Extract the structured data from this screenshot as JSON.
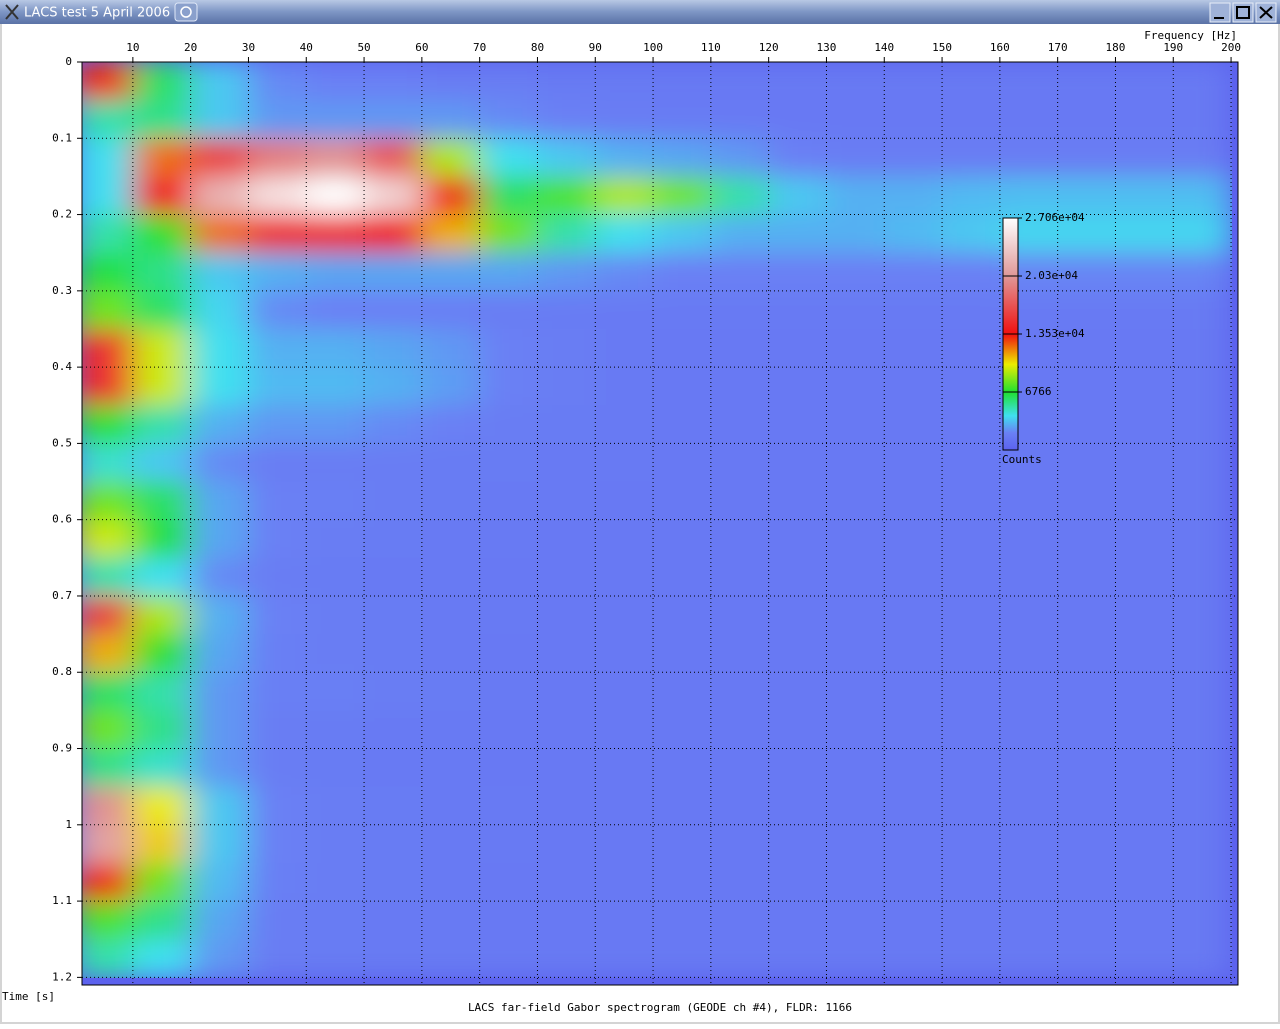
{
  "window": {
    "title": "LACS test 5 April 2006"
  },
  "chart_data": {
    "type": "heatmap",
    "caption": "LACS far-field Gabor spectrogram (GEODE ch #4), FLDR: 1166",
    "x_label": "Frequency [Hz]",
    "y_label": "Time [s]",
    "xlim": [
      1.2,
      201.2
    ],
    "ylim": [
      0,
      1.21
    ],
    "y_inverted": true,
    "xticks": [
      10,
      20,
      30,
      40,
      50,
      60,
      70,
      80,
      90,
      100,
      110,
      120,
      130,
      140,
      150,
      160,
      170,
      180,
      190,
      200
    ],
    "yticks": [
      0,
      0.1,
      0.2,
      0.3,
      0.4,
      0.5,
      0.6,
      0.7,
      0.8,
      0.9,
      1,
      1.1,
      1.2
    ],
    "grid": true,
    "x": [
      5,
      15,
      25,
      35,
      45,
      55,
      65,
      75,
      85,
      95,
      105,
      115,
      125,
      135,
      145,
      155,
      165,
      175,
      185,
      195
    ],
    "y": [
      0.025,
      0.075,
      0.125,
      0.175,
      0.225,
      0.275,
      0.325,
      0.375,
      0.425,
      0.475,
      0.525,
      0.575,
      0.625,
      0.675,
      0.725,
      0.775,
      0.825,
      0.875,
      0.925,
      0.975,
      1.025,
      1.075,
      1.125,
      1.175
    ],
    "values": [
      [
        13000,
        6000,
        3500,
        2200,
        2000,
        2000,
        1800,
        1800,
        1600,
        1600,
        1500,
        1500,
        1500,
        1500,
        1500,
        1500,
        1500,
        1500,
        1500,
        1500
      ],
      [
        5000,
        5500,
        3500,
        2500,
        2500,
        2500,
        2500,
        2200,
        2000,
        1800,
        1700,
        1600,
        1500,
        1500,
        1500,
        1500,
        1500,
        1500,
        1500,
        1500
      ],
      [
        4000,
        12000,
        16000,
        19000,
        20000,
        17000,
        9000,
        4000,
        3500,
        3000,
        2800,
        2500,
        2000,
        1800,
        1800,
        1800,
        1800,
        1800,
        1800,
        1800
      ],
      [
        4000,
        14000,
        22000,
        25000,
        27000,
        24000,
        13000,
        6000,
        7500,
        9000,
        8000,
        5000,
        3500,
        3000,
        3000,
        3200,
        3300,
        3300,
        3300,
        3300
      ],
      [
        5000,
        7000,
        12000,
        15000,
        15000,
        14000,
        11000,
        8000,
        5000,
        4000,
        3500,
        3000,
        3000,
        3000,
        3200,
        3500,
        3800,
        3800,
        3800,
        3800
      ],
      [
        6500,
        5500,
        3500,
        3000,
        2800,
        2800,
        2800,
        2800,
        2500,
        2200,
        2000,
        2000,
        2000,
        2000,
        2000,
        2000,
        2100,
        2100,
        2100,
        2100
      ],
      [
        8000,
        6000,
        3800,
        2200,
        2000,
        2000,
        1900,
        1800,
        1700,
        1600,
        1600,
        1600,
        1600,
        1600,
        1600,
        1600,
        1600,
        1600,
        1600,
        1600
      ],
      [
        15000,
        9500,
        4000,
        3000,
        3000,
        2800,
        2500,
        2000,
        1800,
        1600,
        1500,
        1500,
        1500,
        1500,
        1500,
        1500,
        1500,
        1500,
        1500,
        1500
      ],
      [
        15000,
        9500,
        4000,
        3200,
        3200,
        3000,
        2600,
        2000,
        1800,
        1600,
        1500,
        1500,
        1500,
        1500,
        1500,
        1500,
        1500,
        1500,
        1500,
        1500
      ],
      [
        7000,
        5000,
        3000,
        2500,
        2500,
        2200,
        2000,
        1800,
        1700,
        1600,
        1500,
        1500,
        1500,
        1500,
        1500,
        1500,
        1500,
        1500,
        1500,
        1500
      ],
      [
        4500,
        3500,
        2200,
        1800,
        1800,
        1800,
        1700,
        1700,
        1600,
        1600,
        1500,
        1500,
        1500,
        1500,
        1500,
        1500,
        1500,
        1500,
        1500,
        1500
      ],
      [
        8000,
        6000,
        2800,
        2000,
        1900,
        1800,
        1700,
        1600,
        1600,
        1500,
        1500,
        1500,
        1500,
        1500,
        1500,
        1500,
        1500,
        1500,
        1500,
        1500
      ],
      [
        9500,
        6500,
        2800,
        2000,
        1800,
        1700,
        1600,
        1600,
        1500,
        1500,
        1500,
        1500,
        1500,
        1500,
        1500,
        1500,
        1500,
        1500,
        1500,
        1500
      ],
      [
        5000,
        4000,
        2200,
        1800,
        1700,
        1600,
        1600,
        1500,
        1500,
        1500,
        1500,
        1500,
        1500,
        1500,
        1500,
        1500,
        1500,
        1500,
        1500,
        1500
      ],
      [
        16000,
        9000,
        3000,
        2000,
        1800,
        1700,
        1600,
        1600,
        1500,
        1500,
        1500,
        1500,
        1500,
        1500,
        1500,
        1500,
        1500,
        1500,
        1500,
        1500
      ],
      [
        11000,
        7000,
        2800,
        1900,
        1800,
        1700,
        1600,
        1500,
        1500,
        1500,
        1500,
        1500,
        1500,
        1500,
        1500,
        1500,
        1500,
        1500,
        1500,
        1500
      ],
      [
        6000,
        5000,
        2500,
        1900,
        1900,
        1800,
        1700,
        1600,
        1500,
        1500,
        1500,
        1500,
        1500,
        1500,
        1500,
        1500,
        1500,
        1500,
        1500,
        1500
      ],
      [
        8000,
        5500,
        2500,
        1800,
        1700,
        1600,
        1600,
        1500,
        1500,
        1500,
        1500,
        1500,
        1500,
        1500,
        1500,
        1500,
        1500,
        1500,
        1500,
        1500
      ],
      [
        5500,
        4500,
        2500,
        1800,
        1700,
        1600,
        1600,
        1500,
        1500,
        1500,
        1500,
        1500,
        1500,
        1500,
        1500,
        1500,
        1500,
        1500,
        1500,
        1500
      ],
      [
        20000,
        10000,
        3500,
        2000,
        1800,
        1700,
        1600,
        1600,
        1500,
        1500,
        1500,
        1500,
        1500,
        1500,
        1500,
        1500,
        1500,
        1500,
        1500,
        1500
      ],
      [
        21000,
        10500,
        3500,
        2000,
        1800,
        1700,
        1600,
        1600,
        1500,
        1500,
        1500,
        1500,
        1500,
        1500,
        1500,
        1500,
        1500,
        1500,
        1500,
        1500
      ],
      [
        13000,
        8000,
        3200,
        1900,
        1800,
        1700,
        1600,
        1500,
        1500,
        1500,
        1500,
        1500,
        1500,
        1500,
        1500,
        1500,
        1500,
        1500,
        1500,
        1500
      ],
      [
        7500,
        5500,
        2800,
        1800,
        1700,
        1600,
        1600,
        1500,
        1500,
        1500,
        1500,
        1500,
        1500,
        1500,
        1500,
        1500,
        1500,
        1500,
        1500,
        1500
      ],
      [
        5000,
        4000,
        2500,
        1800,
        1700,
        1600,
        1600,
        1500,
        1500,
        1500,
        1500,
        1500,
        1500,
        1500,
        1500,
        1500,
        1500,
        1500,
        1500,
        1500
      ]
    ],
    "colorbar": {
      "label": "Counts",
      "lim": [
        0,
        27060
      ],
      "ticks": [
        6766,
        {
          "value": 13530,
          "label": "1.353e+04"
        },
        {
          "value": 20300,
          "label": "2.03e+04"
        },
        {
          "value": 27060,
          "label": "2.706e+04"
        }
      ],
      "colorscale": [
        [
          0,
          "#5c62ee"
        ],
        [
          2000,
          "#6a80f4"
        ],
        [
          4000,
          "#40e0f0"
        ],
        [
          6766,
          "#20e030"
        ],
        [
          10000,
          "#ecec00"
        ],
        [
          13530,
          "#f01010"
        ],
        [
          20300,
          "#e09898"
        ],
        [
          27060,
          "#ffffff"
        ]
      ]
    }
  }
}
